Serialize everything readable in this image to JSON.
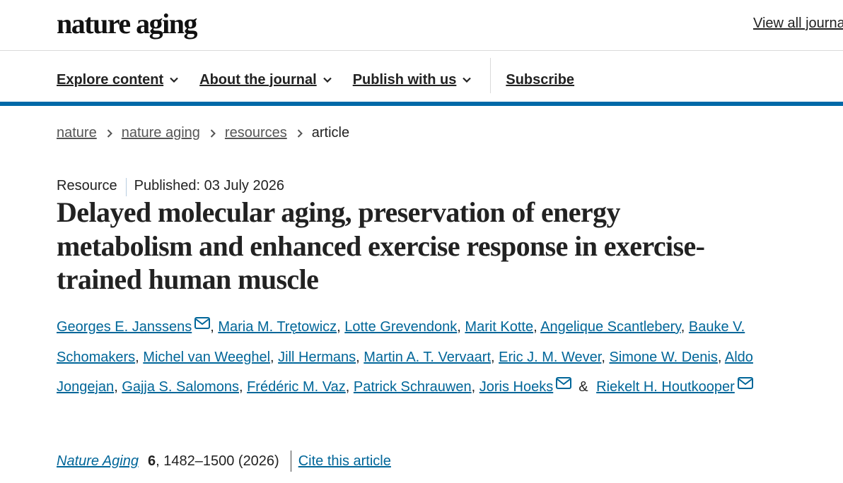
{
  "header": {
    "logo": "nature aging",
    "view_all": "View all journals"
  },
  "nav": [
    "Explore content",
    "About the journal",
    "Publish with us",
    "Subscribe"
  ],
  "breadcrumbs": [
    "nature",
    "nature aging",
    "resources",
    "article"
  ],
  "article": {
    "type": "Resource",
    "published": "Published: 03 July 2026",
    "title": "Delayed molecular aging, preservation of energy metabolism and enhanced exercise response in exercise-trained human muscle",
    "authors": [
      {
        "name": "Georges E. Janssens",
        "email": true,
        "sep": ","
      },
      {
        "name": "Maria M. Trętowicz",
        "sep": ","
      },
      {
        "name": "Lotte Grevendonk",
        "sep": ","
      },
      {
        "name": "Marit Kotte",
        "sep": ","
      },
      {
        "name": "Angelique Scantlebery",
        "sep": ","
      },
      {
        "name": "Bauke V. Schomakers",
        "sep": ","
      },
      {
        "name": "Michel van Weeghel",
        "sep": ","
      },
      {
        "name": "Jill Hermans",
        "sep": ","
      },
      {
        "name": "Martin A. T. Vervaart",
        "sep": ","
      },
      {
        "name": "Eric J. M. Wever",
        "sep": ","
      },
      {
        "name": "Simone W. Denis",
        "sep": ","
      },
      {
        "name": "Aldo Jongejan",
        "sep": ","
      },
      {
        "name": "Gajja S. Salomons",
        "sep": ","
      },
      {
        "name": "Frédéric M. Vaz",
        "sep": ","
      },
      {
        "name": "Patrick Schrauwen",
        "sep": ","
      },
      {
        "name": "Joris Hoeks",
        "email": true,
        "sep": "&"
      },
      {
        "name": "Riekelt H. Houtkooper",
        "email": true
      }
    ],
    "citation": {
      "journal": "Nature Aging",
      "volume": "6",
      "rest": ", 1482–1500 (2026)",
      "cite": "Cite this article"
    }
  }
}
